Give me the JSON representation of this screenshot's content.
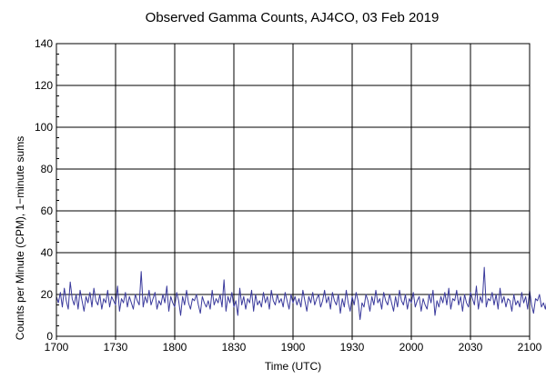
{
  "chart_data": {
    "type": "line",
    "title": "Observed Gamma Counts, AJ4CO, 03 Feb 2019",
    "xlabel": "Time (UTC)",
    "ylabel": "Counts per Minute (CPM), 1−minute sums",
    "xlim": [
      "17:00",
      "21:00"
    ],
    "ylim": [
      0,
      140
    ],
    "x_ticks": [
      "1700",
      "1730",
      "1800",
      "1830",
      "1900",
      "1930",
      "2000",
      "2030",
      "2100"
    ],
    "y_ticks": [
      0,
      20,
      40,
      60,
      80,
      100,
      120,
      140
    ],
    "grid": true,
    "x_start": "17:00",
    "x_interval_minutes": 1,
    "series_color": "#3a3a9c",
    "series": [
      {
        "values": [
          19,
          16,
          21,
          14,
          23,
          17,
          13,
          26,
          18,
          15,
          20,
          13,
          22,
          17,
          12,
          19,
          16,
          21,
          14,
          23,
          17,
          15,
          20,
          13,
          18,
          16,
          22,
          14,
          19,
          17,
          15,
          24,
          12,
          18,
          16,
          21,
          14,
          19,
          16,
          13,
          20,
          17,
          15,
          31,
          14,
          19,
          16,
          22,
          15,
          18,
          21,
          13,
          17,
          15,
          20,
          16,
          24,
          12,
          19,
          16,
          14,
          21,
          17,
          10,
          19,
          15,
          22,
          16,
          13,
          18,
          17,
          20,
          15,
          11,
          19,
          16,
          14,
          17,
          13,
          22,
          15,
          18,
          16,
          20,
          14,
          27,
          12,
          19,
          16,
          21,
          14,
          17,
          10,
          23,
          15,
          19,
          13,
          18,
          16,
          22,
          12,
          20,
          15,
          17,
          14,
          21,
          16,
          19,
          13,
          22,
          17,
          15,
          20,
          16,
          18,
          14,
          21,
          17,
          13,
          20,
          16,
          19,
          15,
          18,
          14,
          22,
          17,
          12,
          19,
          16,
          21,
          15,
          18,
          20,
          14,
          17,
          22,
          16,
          19,
          13,
          21,
          17,
          15,
          20,
          11,
          18,
          14,
          22,
          16,
          12,
          19,
          15,
          21,
          17,
          8,
          16,
          14,
          20,
          17,
          12,
          19,
          15,
          22,
          16,
          18,
          13,
          21,
          17,
          15,
          20,
          16,
          12,
          19,
          14,
          22,
          17,
          15,
          20,
          13,
          18,
          16,
          21,
          14,
          17,
          19,
          12,
          18,
          15,
          13,
          20,
          16,
          22,
          10,
          17,
          14,
          19,
          16,
          21,
          15,
          23,
          13,
          18,
          17,
          22,
          15,
          19,
          12,
          20,
          16,
          14,
          21,
          18,
          15,
          24,
          13,
          19,
          16,
          33,
          14,
          18,
          17,
          21,
          15,
          20,
          13,
          23,
          16,
          19,
          14,
          18,
          17,
          12,
          20,
          15,
          17,
          14,
          21,
          16,
          19,
          13,
          22,
          15,
          11,
          18,
          17,
          20,
          14,
          16,
          13,
          19,
          15,
          21,
          17,
          12,
          18,
          8,
          16,
          14,
          20,
          17,
          12,
          19,
          15,
          22,
          16,
          18,
          13,
          21,
          17,
          15,
          20,
          16,
          12,
          19,
          14,
          17,
          15,
          22,
          13,
          18,
          16,
          21,
          14,
          17,
          19,
          25,
          15,
          18,
          16,
          20,
          14,
          19,
          17,
          13,
          22,
          15,
          18,
          16,
          14,
          20,
          17,
          21,
          16,
          19,
          15,
          22,
          17,
          14,
          20,
          18,
          15,
          21,
          16,
          13,
          19,
          17,
          22,
          14,
          18,
          16,
          12,
          20,
          15,
          21,
          17,
          14,
          19,
          16,
          22,
          13,
          18,
          17,
          15,
          20,
          14,
          16,
          12,
          19,
          15,
          21,
          17,
          13,
          18,
          16,
          22,
          14,
          20,
          17,
          15,
          19,
          13,
          21,
          16,
          12,
          18,
          15,
          20,
          17,
          14,
          19,
          16,
          22,
          15,
          17,
          13,
          21,
          14,
          18,
          16,
          20,
          11,
          19,
          15,
          22,
          17,
          24,
          14,
          18,
          16,
          21,
          15,
          19,
          13,
          17,
          16,
          20,
          14,
          22,
          17,
          15,
          19,
          16,
          21,
          13,
          18,
          17,
          22,
          15,
          12,
          19,
          16,
          20,
          14,
          18,
          17,
          21,
          15,
          19,
          16,
          13,
          20,
          17,
          22,
          14,
          18,
          15,
          21,
          16,
          24,
          13,
          19,
          17,
          15,
          20,
          16,
          22,
          14,
          18,
          15,
          12,
          19,
          17,
          21,
          16,
          13,
          18,
          15,
          20,
          17,
          22,
          14,
          19,
          16,
          21,
          15,
          18,
          13,
          20,
          17,
          16,
          14,
          22,
          15,
          19,
          16,
          21,
          17,
          12,
          18,
          15,
          20,
          14,
          17,
          24,
          13,
          19,
          16,
          22,
          15,
          18,
          14,
          21,
          17,
          16,
          20,
          13,
          19,
          15,
          12,
          18,
          16,
          14,
          17,
          13,
          15,
          18,
          12,
          16,
          14,
          17,
          15,
          13,
          19,
          16
        ]
      }
    ]
  }
}
